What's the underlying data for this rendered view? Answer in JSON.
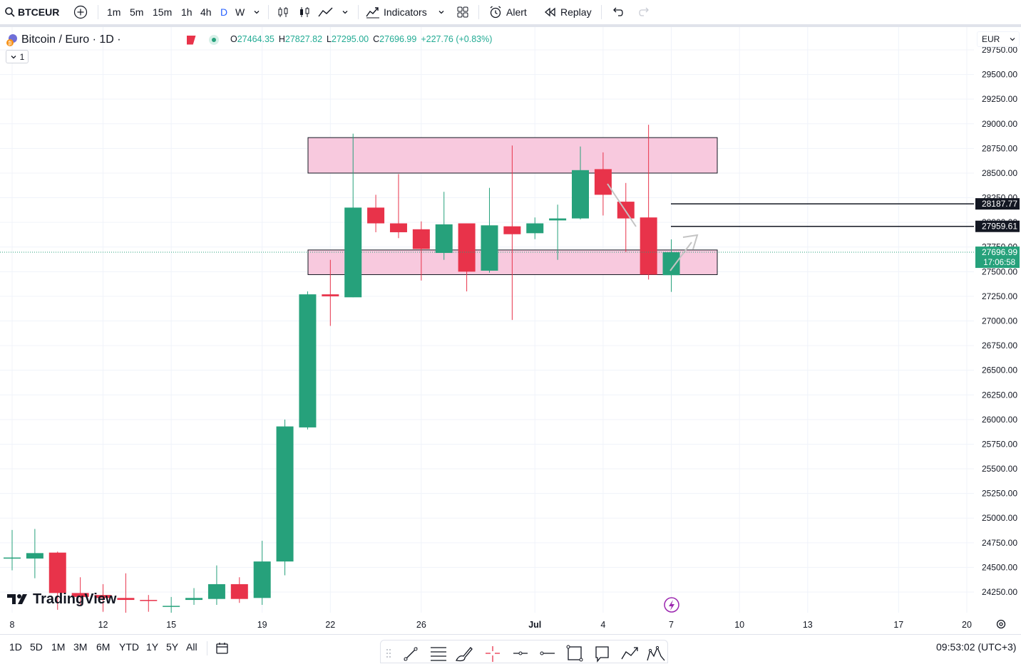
{
  "toolbar": {
    "symbol": "BTCEUR",
    "intervals": [
      "1m",
      "5m",
      "15m",
      "1h",
      "4h",
      "D",
      "W"
    ],
    "active_interval": "D",
    "indicators_label": "Indicators",
    "alert_label": "Alert",
    "replay_label": "Replay"
  },
  "legend": {
    "title": "Bitcoin / Euro · 1D ·",
    "open_key": "O",
    "open": "27464.35",
    "high_key": "H",
    "high": "27827.82",
    "low_key": "L",
    "low": "27295.00",
    "close_key": "C",
    "close": "27696.99",
    "change": "+227.76 (+0.83%)",
    "collapse_count": "1"
  },
  "price_scale": {
    "currency": "EUR",
    "ticks": [
      "29750.00",
      "29500.00",
      "29250.00",
      "29000.00",
      "28750.00",
      "28500.00",
      "28250.00",
      "28000.00",
      "27750.00",
      "27500.00",
      "27250.00",
      "27000.00",
      "26750.00",
      "26500.00",
      "26250.00",
      "26000.00",
      "25750.00",
      "25500.00",
      "25250.00",
      "25000.00",
      "24750.00",
      "24500.00",
      "24250.00"
    ],
    "line_labels": [
      "28187.77",
      "27959.61"
    ],
    "last_price": "27696.99",
    "countdown": "17:06:58"
  },
  "time_scale": {
    "labels": [
      "8",
      "12",
      "15",
      "19",
      "22",
      "26",
      "Jul",
      "4",
      "7",
      "10",
      "13",
      "17",
      "20"
    ]
  },
  "colors": {
    "up": "#26a17b",
    "down": "#e8334a",
    "zone_fill": "#f8c6dc",
    "accent": "#2962ff",
    "active_interval": "#2962ff"
  },
  "chart_data": {
    "type": "candlestick",
    "symbol": "BTCEUR",
    "interval": "1D",
    "candles": [
      {
        "d": "Jun 8",
        "o": 24600,
        "h": 24880,
        "l": 24470,
        "c": 24600
      },
      {
        "d": "Jun 9",
        "o": 24590,
        "h": 24890,
        "l": 24390,
        "c": 24645
      },
      {
        "d": "Jun 10",
        "o": 24650,
        "h": 24660,
        "l": 24070,
        "c": 24240
      },
      {
        "d": "Jun 11",
        "o": 24240,
        "h": 24400,
        "l": 24120,
        "c": 24200
      },
      {
        "d": "Jun 12",
        "o": 24220,
        "h": 24330,
        "l": 24050,
        "c": 24190
      },
      {
        "d": "Jun 13",
        "o": 24190,
        "h": 24440,
        "l": 24010,
        "c": 24170
      },
      {
        "d": "Jun 14",
        "o": 24170,
        "h": 24220,
        "l": 24050,
        "c": 24160
      },
      {
        "d": "Jun 15",
        "o": 24100,
        "h": 24200,
        "l": 24030,
        "c": 24110
      },
      {
        "d": "Jun 16",
        "o": 24170,
        "h": 24290,
        "l": 24120,
        "c": 24190
      },
      {
        "d": "Jun 17",
        "o": 24180,
        "h": 24520,
        "l": 24120,
        "c": 24330
      },
      {
        "d": "Jun 18",
        "o": 24330,
        "h": 24400,
        "l": 24140,
        "c": 24180
      },
      {
        "d": "Jun 19",
        "o": 24190,
        "h": 24770,
        "l": 24120,
        "c": 24560
      },
      {
        "d": "Jun 20",
        "o": 24560,
        "h": 26000,
        "l": 24420,
        "c": 25930
      },
      {
        "d": "Jun 21",
        "o": 25920,
        "h": 27300,
        "l": 25900,
        "c": 27270
      },
      {
        "d": "Jun 22",
        "o": 27270,
        "h": 27620,
        "l": 26950,
        "c": 27250
      },
      {
        "d": "Jun 23",
        "o": 27240,
        "h": 28900,
        "l": 27240,
        "c": 28150
      },
      {
        "d": "Jun 24",
        "o": 28150,
        "h": 28280,
        "l": 27900,
        "c": 27990
      },
      {
        "d": "Jun 25",
        "o": 27990,
        "h": 28490,
        "l": 27840,
        "c": 27900
      },
      {
        "d": "Jun 26",
        "o": 27930,
        "h": 28010,
        "l": 27410,
        "c": 27730
      },
      {
        "d": "Jun 27",
        "o": 27690,
        "h": 28310,
        "l": 27620,
        "c": 27980
      },
      {
        "d": "Jun 28",
        "o": 27990,
        "h": 27990,
        "l": 27300,
        "c": 27500
      },
      {
        "d": "Jun 29",
        "o": 27510,
        "h": 28350,
        "l": 27490,
        "c": 27970
      },
      {
        "d": "Jun 30",
        "o": 27960,
        "h": 28780,
        "l": 27010,
        "c": 27880
      },
      {
        "d": "Jul 1",
        "o": 27890,
        "h": 28050,
        "l": 27830,
        "c": 27990
      },
      {
        "d": "Jul 2",
        "o": 28020,
        "h": 28180,
        "l": 27620,
        "c": 28040
      },
      {
        "d": "Jul 3",
        "o": 28040,
        "h": 28770,
        "l": 28030,
        "c": 28530
      },
      {
        "d": "Jul 4",
        "o": 28540,
        "h": 28710,
        "l": 28070,
        "c": 28280
      },
      {
        "d": "Jul 5",
        "o": 28210,
        "h": 28400,
        "l": 27700,
        "c": 28040
      },
      {
        "d": "Jul 6",
        "o": 28050,
        "h": 28990,
        "l": 27420,
        "c": 27470
      },
      {
        "d": "Jul 7",
        "o": 27464.35,
        "h": 27827.82,
        "l": 27295.0,
        "c": 27696.99
      }
    ],
    "horizontal_lines": [
      28187.77,
      27959.61
    ],
    "zones": [
      {
        "from": "Jun 21",
        "to": "Jul 9",
        "top": 28860,
        "bottom": 28500
      },
      {
        "from": "Jun 21",
        "to": "Jul 9",
        "top": 27720,
        "bottom": 27470
      }
    ],
    "y_range": [
      24050,
      29770
    ],
    "grid": true
  }
}
